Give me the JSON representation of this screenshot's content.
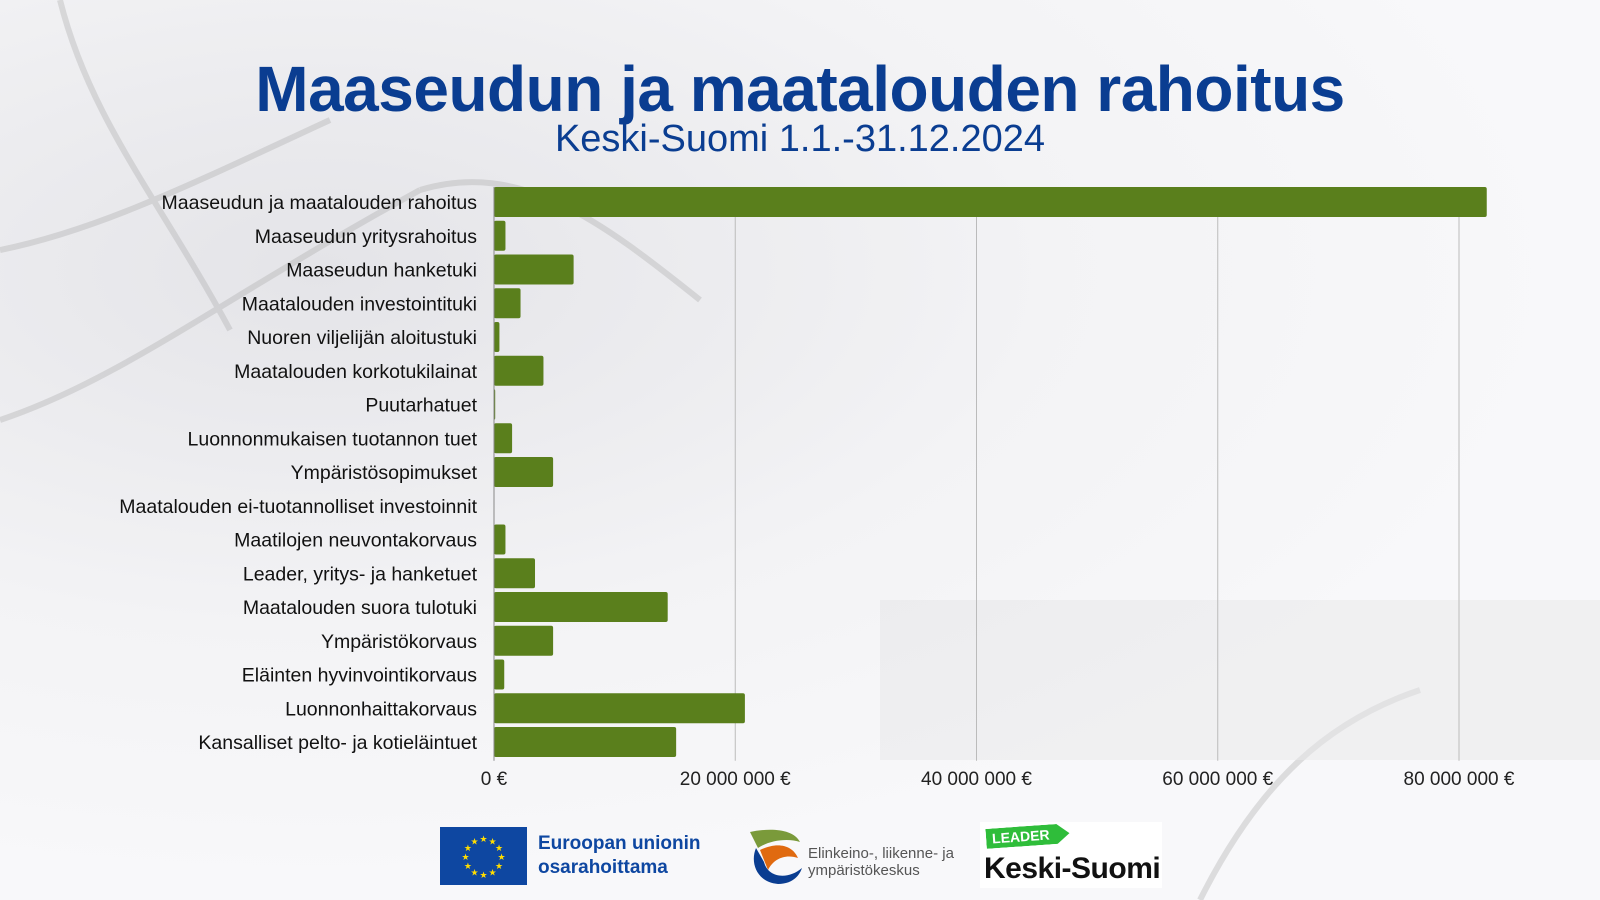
{
  "header": {
    "title": "Maaseudun ja maatalouden rahoitus",
    "subtitle": "Keski-Suomi 1.1.-31.12.2024"
  },
  "chart_data": {
    "type": "bar",
    "orientation": "horizontal",
    "title": "Maaseudun ja maatalouden rahoitus",
    "subtitle": "Keski-Suomi 1.1.-31.12.2024",
    "categories": [
      "Maaseudun ja maatalouden rahoitus",
      "Maaseudun yritysrahoitus",
      "Maaseudun hanketuki",
      "Maatalouden investointituki",
      "Nuoren viljelijän aloitustuki",
      "Maatalouden korkotukilainat",
      "Puutarhatuet",
      "Luonnonmukaisen tuotannon tuet",
      "Ympäristösopimukset",
      "Maatalouden ei-tuotannolliset investoinnit",
      "Maatilojen neuvontakorvaus",
      "Leader, yritys- ja hanketuet",
      "Maatalouden suora tulotuki",
      "Ympäristökorvaus",
      "Eläinten hyvinvointikorvaus",
      "Luonnonhaittakorvaus",
      "Kansalliset pelto- ja kotieläintuet"
    ],
    "values": [
      82300000,
      950000,
      6600000,
      2200000,
      450000,
      4100000,
      100000,
      1500000,
      4900000,
      0,
      950000,
      3400000,
      14400000,
      4900000,
      850000,
      20800000,
      15100000
    ],
    "xlim": [
      0,
      85000000
    ],
    "xticks": [
      0,
      20000000,
      40000000,
      60000000,
      80000000
    ],
    "xtick_labels": [
      "0 €",
      "20 000 000 €",
      "40 000 000 €",
      "60 000 000 €",
      "80 000 000 €"
    ],
    "grid": "vertical",
    "bar_color": "#5a7f1c",
    "xlabel": "",
    "ylabel": ""
  },
  "footer": {
    "eu_line1": "Euroopan unionin",
    "eu_line2": "osarahoittama",
    "ely_line1": "Elinkeino-, liikenne- ja",
    "ely_line2": "ympäristökeskus",
    "leader_tag": "LEADER",
    "leader_name": "Keski-Suomi"
  },
  "colors": {
    "title": "#0a3d91",
    "bar": "#5a7f1c"
  }
}
